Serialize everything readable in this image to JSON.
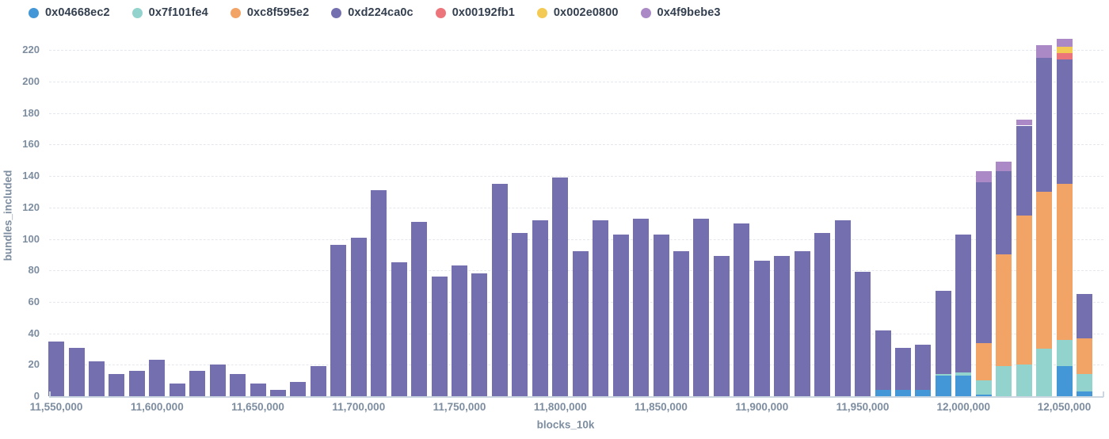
{
  "legend": {
    "items": [
      {
        "label": "0x04668ec2",
        "color": "#4397d7"
      },
      {
        "label": "0x7f101fe4",
        "color": "#92d3cd"
      },
      {
        "label": "0xc8f595e2",
        "color": "#f2a466"
      },
      {
        "label": "0xd224ca0c",
        "color": "#7470af"
      },
      {
        "label": "0x00192fb1",
        "color": "#ec757b"
      },
      {
        "label": "0x002e0800",
        "color": "#f3ca54"
      },
      {
        "label": "0x4f9bebe3",
        "color": "#ab89c6"
      }
    ]
  },
  "chart_data": {
    "type": "bar",
    "stacked": true,
    "title": "",
    "xlabel": "blocks_10k",
    "ylabel": "bundles_included",
    "grid": "horizontal-dashed",
    "legend_position": "top-left",
    "ylim": [
      0,
      230
    ],
    "yticks": [
      0,
      20,
      40,
      60,
      80,
      100,
      120,
      140,
      160,
      180,
      200,
      220
    ],
    "xtick_values": [
      11550000,
      11600000,
      11650000,
      11700000,
      11750000,
      11800000,
      11850000,
      11900000,
      11950000,
      12000000,
      12050000
    ],
    "xtick_labels": [
      "11,550,000",
      "11,600,000",
      "11,650,000",
      "11,700,000",
      "11,750,000",
      "11,800,000",
      "11,850,000",
      "11,900,000",
      "11,950,000",
      "12,000,000",
      "12,050,000"
    ],
    "x_start": 11550000,
    "x_step": 10000,
    "categories": [
      11550000,
      11560000,
      11570000,
      11580000,
      11590000,
      11600000,
      11610000,
      11620000,
      11630000,
      11640000,
      11650000,
      11660000,
      11670000,
      11680000,
      11690000,
      11700000,
      11710000,
      11720000,
      11730000,
      11740000,
      11750000,
      11760000,
      11770000,
      11780000,
      11790000,
      11800000,
      11810000,
      11820000,
      11830000,
      11840000,
      11850000,
      11860000,
      11870000,
      11880000,
      11890000,
      11900000,
      11910000,
      11920000,
      11930000,
      11940000,
      11950000,
      11960000,
      11970000,
      11980000,
      11990000,
      12000000,
      12010000,
      12020000,
      12030000,
      12040000,
      12050000,
      12060000
    ],
    "series": [
      {
        "name": "0x04668ec2",
        "color": "#4397d7",
        "values": [
          0,
          0,
          0,
          0,
          0,
          0,
          0,
          0,
          0,
          0,
          0,
          0,
          0,
          0,
          0,
          0,
          0,
          0,
          0,
          0,
          0,
          0,
          0,
          0,
          0,
          0,
          0,
          0,
          0,
          0,
          0,
          0,
          0,
          0,
          0,
          0,
          0,
          0,
          0,
          0,
          0,
          4,
          4,
          4,
          13,
          13,
          1,
          0,
          0,
          0,
          19,
          3
        ]
      },
      {
        "name": "0x7f101fe4",
        "color": "#92d3cd",
        "values": [
          0,
          0,
          0,
          0,
          0,
          0,
          0,
          0,
          0,
          0,
          0,
          0,
          0,
          0,
          0,
          0,
          0,
          0,
          0,
          0,
          0,
          0,
          0,
          0,
          0,
          0,
          0,
          0,
          0,
          0,
          0,
          0,
          0,
          0,
          0,
          0,
          0,
          0,
          0,
          0,
          0,
          0,
          0,
          0,
          1,
          2,
          9,
          19,
          20,
          30,
          17,
          11
        ]
      },
      {
        "name": "0xc8f595e2",
        "color": "#f2a466",
        "values": [
          0,
          0,
          0,
          0,
          0,
          0,
          0,
          0,
          0,
          0,
          0,
          0,
          0,
          0,
          0,
          0,
          0,
          0,
          0,
          0,
          0,
          0,
          0,
          0,
          0,
          0,
          0,
          0,
          0,
          0,
          0,
          0,
          0,
          0,
          0,
          0,
          0,
          0,
          0,
          0,
          0,
          0,
          0,
          0,
          0,
          0,
          24,
          71,
          95,
          100,
          99,
          23
        ]
      },
      {
        "name": "0xd224ca0c",
        "color": "#7470af",
        "values": [
          35,
          31,
          22,
          14,
          16,
          23,
          8,
          16,
          20,
          14,
          8,
          4,
          9,
          19,
          96,
          101,
          131,
          85,
          111,
          76,
          83,
          78,
          135,
          104,
          112,
          139,
          92,
          112,
          103,
          113,
          103,
          92,
          113,
          89,
          110,
          86,
          89,
          92,
          104,
          112,
          79,
          38,
          27,
          29,
          53,
          88,
          102,
          53,
          57,
          85,
          79,
          28
        ]
      },
      {
        "name": "0x00192fb1",
        "color": "#ec757b",
        "values": [
          0,
          0,
          0,
          0,
          0,
          0,
          0,
          0,
          0,
          0,
          0,
          0,
          0,
          0,
          0,
          0,
          0,
          0,
          0,
          0,
          0,
          0,
          0,
          0,
          0,
          0,
          0,
          0,
          0,
          0,
          0,
          0,
          0,
          0,
          0,
          0,
          0,
          0,
          0,
          0,
          0,
          0,
          0,
          0,
          0,
          0,
          0,
          0,
          0,
          0,
          4,
          0
        ]
      },
      {
        "name": "0x002e0800",
        "color": "#f3ca54",
        "values": [
          0,
          0,
          0,
          0,
          0,
          0,
          0,
          0,
          0,
          0,
          0,
          0,
          0,
          0,
          0,
          0,
          0,
          0,
          0,
          0,
          0,
          0,
          0,
          0,
          0,
          0,
          0,
          0,
          0,
          0,
          0,
          0,
          0,
          0,
          0,
          0,
          0,
          0,
          0,
          0,
          0,
          0,
          0,
          0,
          0,
          0,
          0,
          0,
          0,
          0,
          4,
          0
        ]
      },
      {
        "name": "0x4f9bebe3",
        "color": "#ab89c6",
        "values": [
          0,
          0,
          0,
          0,
          0,
          0,
          0,
          0,
          0,
          0,
          0,
          0,
          0,
          0,
          0,
          0,
          0,
          0,
          0,
          0,
          0,
          0,
          0,
          0,
          0,
          0,
          0,
          0,
          0,
          0,
          0,
          0,
          0,
          0,
          0,
          0,
          0,
          0,
          0,
          0,
          0,
          0,
          0,
          0,
          0,
          0,
          7,
          6,
          4,
          8,
          5,
          0
        ]
      }
    ]
  },
  "colors": {
    "background": "#ffffff",
    "gridline": "#e4e7ed",
    "axis_line": "#ccd6e0",
    "tick_text": "#7d8da0",
    "legend_text": "#333f4f"
  }
}
